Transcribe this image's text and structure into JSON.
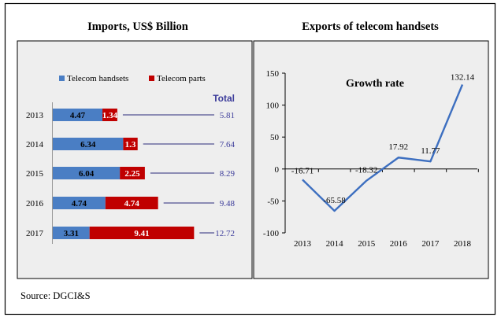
{
  "header": {
    "left_title": "Imports, US$ Billion",
    "right_title": "Exports of telecom handsets"
  },
  "source": "Source: DGCI&S",
  "colors": {
    "handsets": "#4a7ec4",
    "parts": "#c00000",
    "panel_bg": "#eeeeee",
    "line": "#3d6fc0",
    "total_text": "#3b3b9a"
  },
  "chart_data": [
    {
      "type": "bar",
      "orientation": "horizontal",
      "stacked": true,
      "categories": [
        "2013",
        "2014",
        "2015",
        "2016",
        "2017"
      ],
      "series": [
        {
          "name": "Telecom handsets",
          "values": [
            4.47,
            6.34,
            6.04,
            4.74,
            3.31
          ]
        },
        {
          "name": "Telecom parts",
          "values": [
            1.34,
            1.3,
            2.25,
            4.74,
            9.41
          ]
        }
      ],
      "totals_label": "Total",
      "totals": [
        "5.81",
        "7.64",
        "8.29",
        "9.48",
        "12.72"
      ],
      "title": "Imports, US$ Billion",
      "legend_position": "top"
    },
    {
      "type": "line",
      "title": "Growth rate",
      "x": [
        "2013",
        "2014",
        "2015",
        "2016",
        "2017",
        "2018"
      ],
      "y": [
        -16.71,
        -65.58,
        -18.32,
        17.92,
        11.77,
        132.14
      ],
      "labels": [
        "-16.71",
        "-65.58",
        "-18.32",
        "17.92",
        "11.77",
        "132.14"
      ],
      "ylim": [
        -100,
        150
      ],
      "yticks": [
        "150",
        "100",
        "50",
        "0",
        "-50",
        "-100"
      ],
      "grid": false
    }
  ]
}
